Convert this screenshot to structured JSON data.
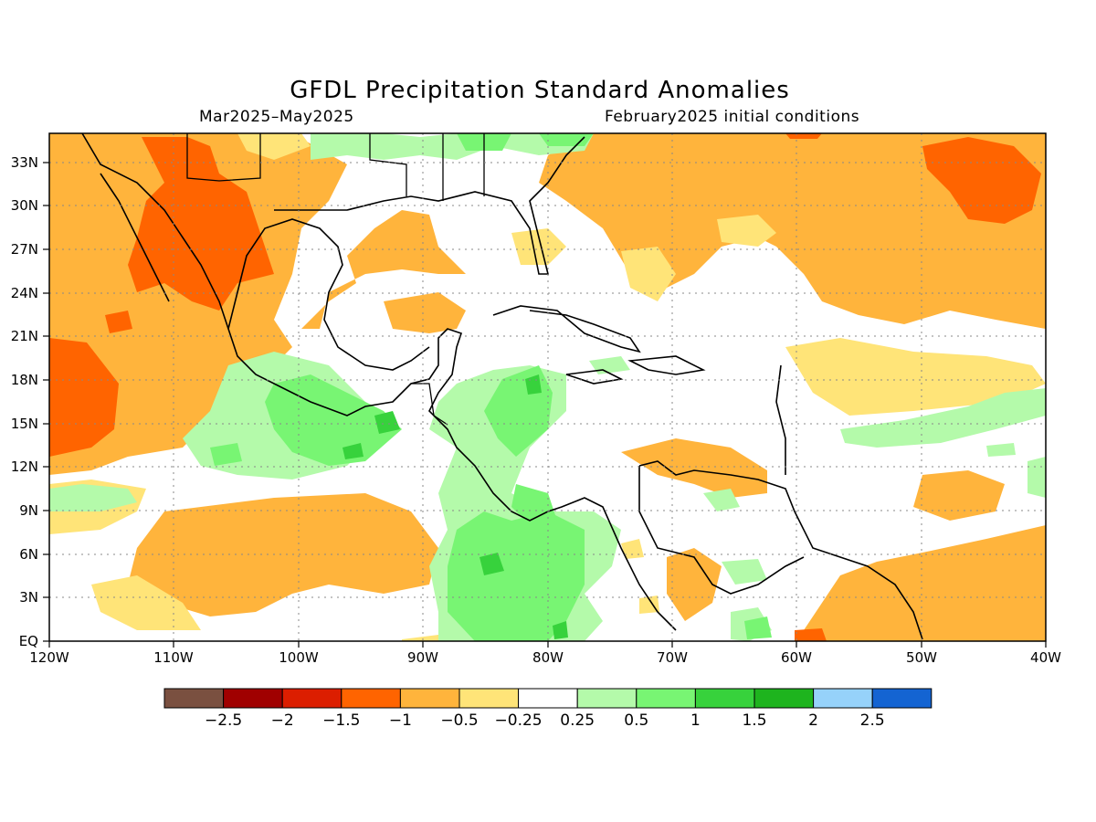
{
  "header": {
    "title": "GFDL Precipitation Standard Anomalies",
    "period": "Mar2025–May2025",
    "init": "February2025 initial conditions"
  },
  "map": {
    "region": "Central America / Caribbean / Gulf of Mexico",
    "lon_range": [
      -120,
      -40
    ],
    "lat_range": [
      0,
      35
    ],
    "x_ticks": [
      "120W",
      "110W",
      "100W",
      "90W",
      "80W",
      "70W",
      "60W",
      "50W",
      "40W"
    ],
    "y_ticks": [
      "EQ",
      "3N",
      "6N",
      "9N",
      "12N",
      "15N",
      "18N",
      "21N",
      "24N",
      "27N",
      "30N",
      "33N"
    ],
    "grid": "dotted"
  },
  "colorbar": {
    "colors": [
      "#7a5040",
      "#a00000",
      "#dc1e00",
      "#ff6400",
      "#ffb43c",
      "#ffe478",
      "#ffffff",
      "#b4faaa",
      "#78f573",
      "#37d23c",
      "#1eb41e",
      "#96d2fa",
      "#1464d2"
    ],
    "labels": [
      "−2.5",
      "−2",
      "−1.5",
      "−1",
      "−0.5",
      "−0.25",
      "0.25",
      "0.5",
      "1",
      "1.5",
      "2",
      "2.5"
    ]
  }
}
